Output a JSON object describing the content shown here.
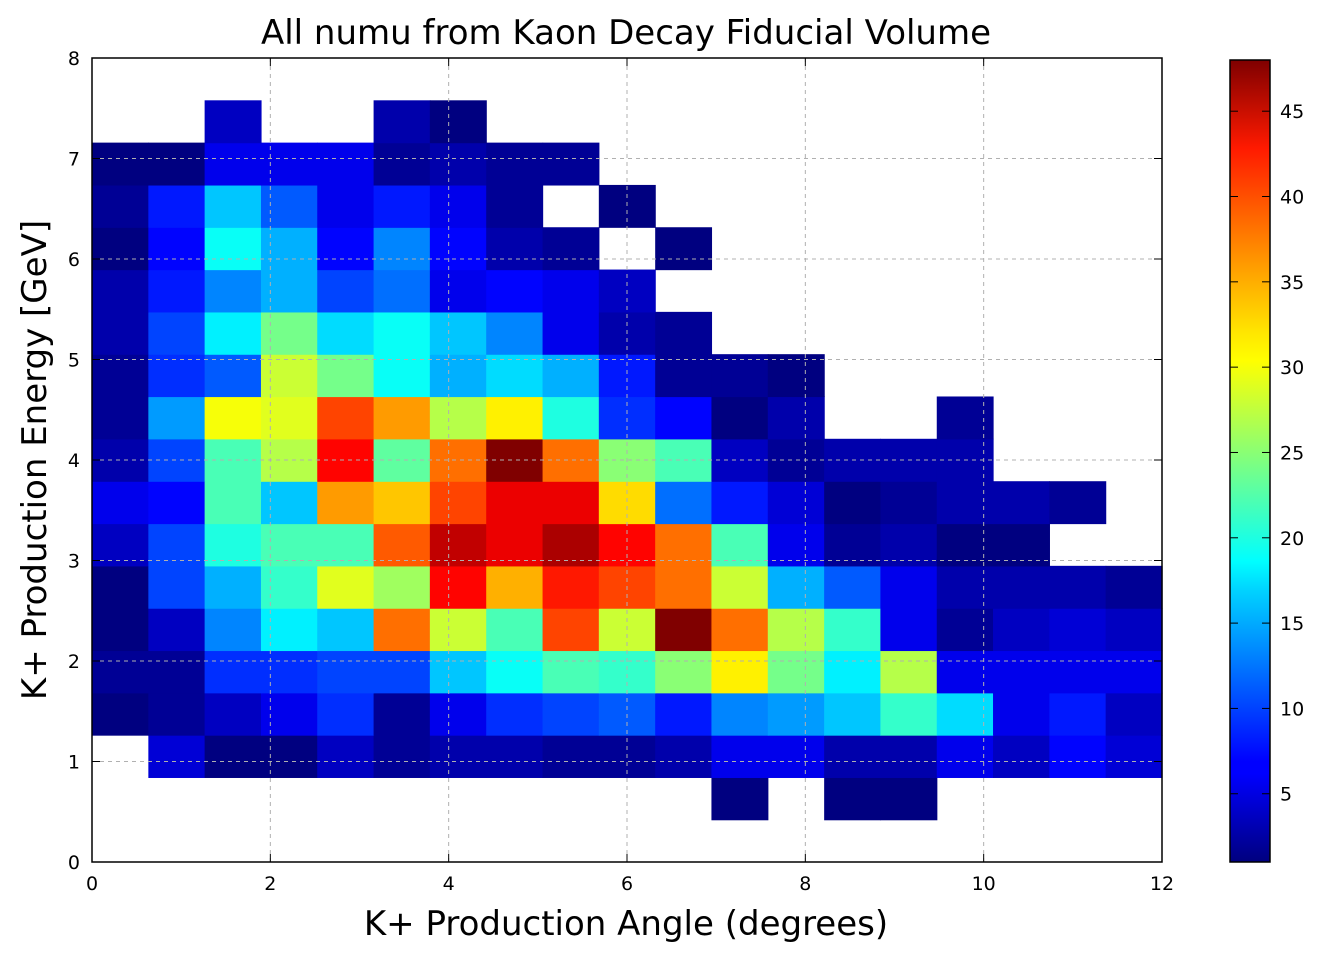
{
  "chart_data": {
    "type": "heatmap",
    "title": "All numu from Kaon Decay Fiducial Volume",
    "xlabel": "K+ Production Angle (degrees)",
    "ylabel": "K+ Production Energy [GeV]",
    "xlim": [
      0,
      12
    ],
    "ylim": [
      0,
      8
    ],
    "x_ticks": [
      0,
      2,
      4,
      6,
      8,
      10,
      12
    ],
    "y_ticks": [
      0,
      1,
      2,
      3,
      4,
      5,
      6,
      7,
      8
    ],
    "grid": true,
    "colormap": "jet",
    "colorbar": {
      "min": 1,
      "max": 48,
      "ticks": [
        5,
        10,
        15,
        20,
        25,
        30,
        35,
        40,
        45
      ]
    },
    "x_bin_edges": [
      0,
      0.632,
      1.263,
      1.895,
      2.526,
      3.158,
      3.789,
      4.421,
      5.053,
      5.684,
      6.316,
      6.947,
      7.579,
      8.211,
      8.842,
      9.474,
      10.105,
      10.737,
      11.368,
      12.0
    ],
    "y_bin_edges": [
      0.421,
      0.842,
      1.263,
      1.684,
      2.105,
      2.526,
      2.947,
      3.368,
      3.789,
      4.211,
      4.632,
      5.053,
      5.474,
      5.895,
      6.316,
      6.737,
      7.158,
      7.579
    ],
    "counts": [
      [
        null,
        null,
        null,
        null,
        null,
        null,
        null,
        null,
        null,
        null,
        null,
        1,
        null,
        1,
        1,
        null,
        null,
        null,
        null
      ],
      [
        null,
        5,
        1,
        1,
        4,
        2,
        3,
        3,
        2,
        2,
        3,
        6,
        6,
        3,
        3,
        6,
        4,
        7,
        5
      ],
      [
        1,
        2,
        4,
        6,
        9,
        2,
        6,
        9,
        10,
        11,
        8,
        13,
        14,
        16,
        21,
        17,
        6,
        8,
        4
      ],
      [
        2,
        2,
        9,
        9,
        10,
        10,
        16,
        19,
        22,
        21,
        25,
        31,
        24,
        18,
        27,
        6,
        6,
        6,
        6
      ],
      [
        1,
        4,
        13,
        18,
        16,
        37,
        28,
        22,
        39,
        28,
        48,
        37,
        27,
        21,
        6,
        2,
        4,
        5,
        4
      ],
      [
        1,
        10,
        15,
        21,
        29,
        26,
        42,
        34,
        41,
        39,
        37,
        28,
        15,
        11,
        6,
        3,
        3,
        3,
        2
      ],
      [
        4,
        10,
        20,
        22,
        22,
        38,
        45,
        43,
        46,
        42,
        37,
        22,
        6,
        2,
        3,
        1,
        1,
        null,
        null
      ],
      [
        6,
        7,
        22,
        16,
        35,
        33,
        39,
        43,
        43,
        32,
        12,
        8,
        5,
        1,
        2,
        3,
        3,
        2,
        null
      ],
      [
        3,
        10,
        22,
        27,
        42,
        23,
        37,
        48,
        37,
        25,
        22,
        4,
        2,
        3,
        3,
        3,
        null,
        null,
        null
      ],
      [
        2,
        14,
        30,
        29,
        39,
        35,
        27,
        31,
        20,
        9,
        7,
        1,
        3,
        null,
        null,
        2,
        null,
        null,
        null
      ],
      [
        2,
        9,
        11,
        28,
        24,
        19,
        15,
        17,
        15,
        8,
        2,
        2,
        1,
        null,
        null,
        null,
        null,
        null,
        null
      ],
      [
        3,
        10,
        18,
        24,
        17,
        19,
        16,
        13,
        6,
        3,
        2,
        null,
        null,
        null,
        null,
        null,
        null,
        null,
        null
      ],
      [
        3,
        8,
        13,
        15,
        10,
        12,
        6,
        7,
        6,
        4,
        null,
        null,
        null,
        null,
        null,
        null,
        null,
        null,
        null
      ],
      [
        1,
        7,
        19,
        15,
        7,
        13,
        7,
        3,
        2,
        null,
        1,
        null,
        null,
        null,
        null,
        null,
        null,
        null,
        null
      ],
      [
        2,
        8,
        16,
        11,
        6,
        8,
        6,
        2,
        null,
        1,
        null,
        null,
        null,
        null,
        null,
        null,
        null,
        null,
        null
      ],
      [
        1,
        1,
        6,
        6,
        6,
        2,
        3,
        2,
        2,
        null,
        null,
        null,
        null,
        null,
        null,
        null,
        null,
        null,
        null
      ],
      [
        null,
        null,
        4,
        null,
        null,
        3,
        1,
        null,
        null,
        null,
        null,
        null,
        null,
        null,
        null,
        null,
        null,
        null,
        null
      ]
    ]
  }
}
